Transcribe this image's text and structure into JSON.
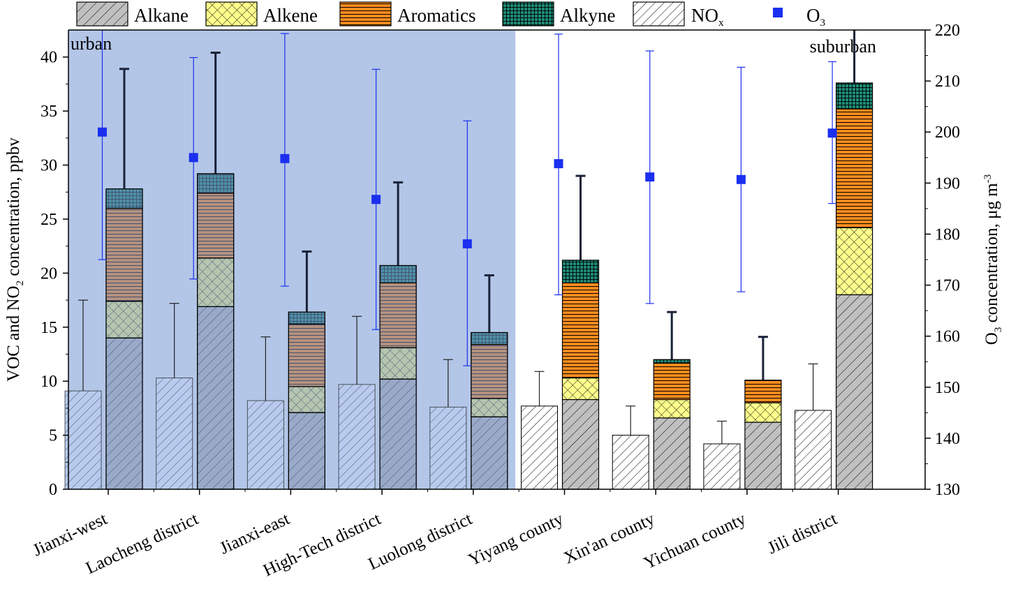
{
  "chart_data": {
    "type": "bar",
    "categories": [
      "Jianxi-west",
      "Laocheng district",
      "Jianxi-east",
      "High-Tech district",
      "Luolong district",
      "Yiyang county",
      "Xin'an county",
      "Yichuan county",
      "Jili district"
    ],
    "regions": [
      {
        "label": "urban",
        "categories": [
          "Jianxi-west",
          "Laocheng district",
          "Jianxi-east",
          "High-Tech district",
          "Luolong district"
        ],
        "color": "#b3c6e7"
      },
      {
        "label": "suburban",
        "categories": [
          "Yiyang county",
          "Xin'an county",
          "Yichuan county",
          "Jili district"
        ],
        "color": "#ffffff"
      }
    ],
    "ylabel": "VOC and NO₂ concentration, ppbv",
    "ylabel_parts": {
      "pre": "VOC and NO",
      "sub": "2",
      "post": " concentration, ppbv"
    },
    "y2label": "O₃ concentration, μg m⁻³",
    "y2label_parts": {
      "pre": "O",
      "sub": "3",
      "post": " concentration, μg m",
      "sup": "-3"
    },
    "ylim": [
      0,
      42.5
    ],
    "yticks": [
      0,
      5,
      10,
      15,
      20,
      25,
      30,
      35,
      40
    ],
    "y2lim": [
      130,
      220
    ],
    "y2ticks": [
      130,
      140,
      150,
      160,
      170,
      180,
      190,
      200,
      210,
      220
    ],
    "legend_position": "top",
    "nox": {
      "name": "NOx",
      "name_parts": {
        "pre": "NO",
        "sub": "x"
      },
      "values": [
        9.1,
        10.3,
        8.2,
        9.7,
        7.6,
        7.7,
        5.0,
        4.2,
        7.3
      ],
      "err_upper": [
        17.5,
        17.2,
        14.1,
        16.0,
        12.0,
        10.9,
        7.7,
        6.3,
        11.6
      ]
    },
    "voc_series": [
      {
        "name": "Alkane",
        "values": [
          14.0,
          16.9,
          7.1,
          10.2,
          6.7,
          8.3,
          6.6,
          6.2,
          18.0
        ],
        "color": "#c0c0c0"
      },
      {
        "name": "Alkene",
        "values": [
          3.4,
          4.5,
          2.4,
          2.9,
          1.7,
          2.0,
          1.7,
          1.8,
          6.2
        ],
        "color": "#ffff8c"
      },
      {
        "name": "Aromatics",
        "values": [
          8.6,
          6.0,
          5.8,
          6.0,
          5.0,
          8.8,
          3.4,
          2.1,
          11.0
        ],
        "color": "#ff8c1e"
      },
      {
        "name": "Alkyne",
        "values": [
          1.8,
          1.8,
          1.1,
          1.6,
          1.1,
          2.1,
          0.3,
          0.0,
          2.4
        ],
        "color": "#1e8c78"
      }
    ],
    "voc_err_upper": [
      38.9,
      40.4,
      22.0,
      28.4,
      19.8,
      29.0,
      16.4,
      14.1,
      44.0
    ],
    "o3": {
      "name": "O3",
      "name_parts": {
        "pre": "O",
        "sub": "3"
      },
      "values": [
        200.0,
        195.0,
        194.8,
        186.8,
        178.1,
        193.8,
        191.2,
        190.7,
        199.8
      ],
      "err_lower": [
        175.0,
        171.2,
        169.8,
        161.3,
        154.2,
        168.1,
        166.4,
        168.7,
        186.0
      ],
      "err_upper": [
        220.0,
        214.6,
        219.3,
        212.3,
        202.2,
        219.2,
        215.9,
        212.7,
        213.8
      ],
      "color": "#1a2ff0"
    }
  }
}
